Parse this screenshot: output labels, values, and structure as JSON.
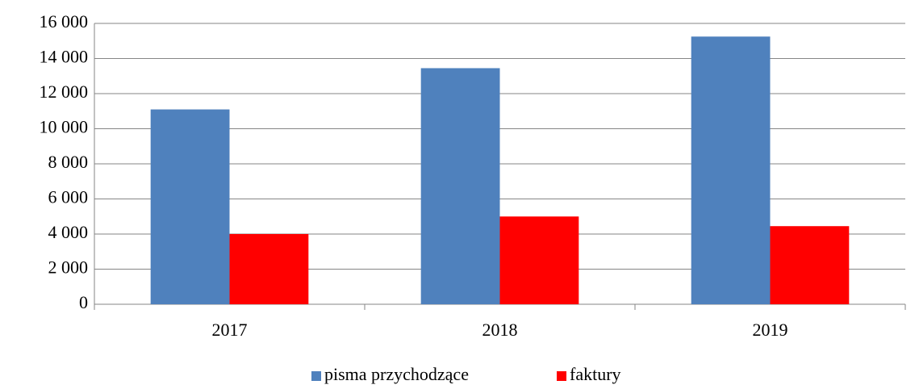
{
  "chart_data": {
    "type": "bar",
    "categories": [
      "2017",
      "2018",
      "2019"
    ],
    "series": [
      {
        "name": "pisma przychodzące",
        "color": "#4f81bd",
        "values": [
          11100,
          13450,
          15250
        ]
      },
      {
        "name": "faktury",
        "color": "#ff0000",
        "values": [
          4000,
          5000,
          4450
        ]
      }
    ],
    "ylim": [
      0,
      16000
    ],
    "yticks": [
      0,
      {
        "value": 2000,
        "label": "2 000"
      },
      {
        "value": 4000,
        "label": "4 000"
      },
      {
        "value": 6000,
        "label": "6 000"
      },
      {
        "value": 8000,
        "label": "8 000"
      },
      {
        "value": 10000,
        "label": "10 000"
      },
      {
        "value": 12000,
        "label": "12 000"
      },
      {
        "value": 14000,
        "label": "14 000"
      },
      {
        "value": 16000,
        "label": "16 000"
      }
    ],
    "grid": true,
    "legend": "bottom"
  }
}
